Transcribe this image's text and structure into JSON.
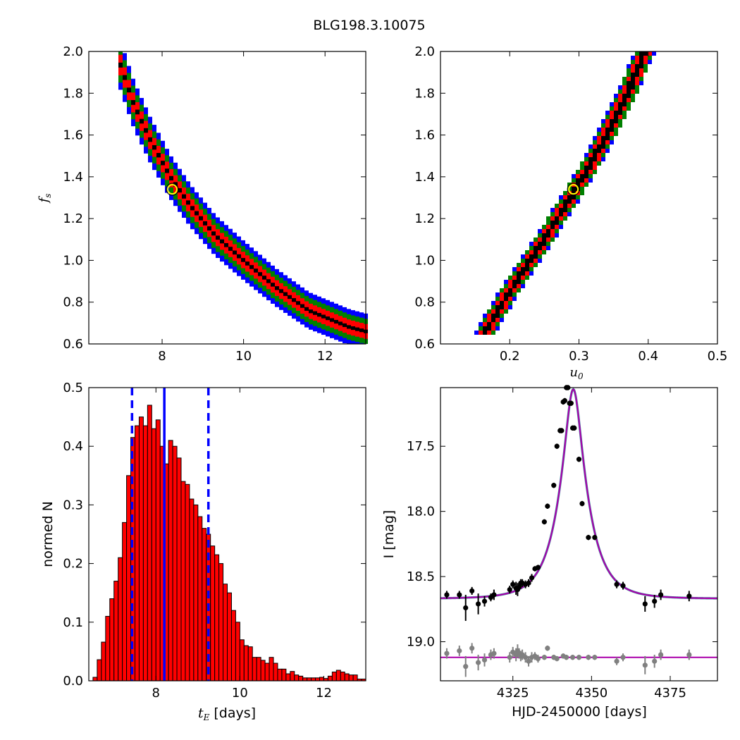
{
  "figure": {
    "title": "BLG198.3.10075"
  },
  "colors": {
    "blue": "#0000ff",
    "green": "#008000",
    "red": "#ff0000",
    "black": "#000000",
    "best_fit": "#ffff00",
    "model": "#aa00aa",
    "residual": "#808080"
  },
  "chart_data": [
    {
      "type": "heatmap",
      "panel": "tE-fs",
      "xlabel": "",
      "ylabel": "f_s",
      "xlim": [
        6.2,
        13.0
      ],
      "ylim": [
        0.6,
        2.0
      ],
      "xticks": [
        "8",
        "10",
        "12"
      ],
      "yticks": [
        "0.6",
        "0.8",
        "1.0",
        "1.2",
        "1.4",
        "1.6",
        "1.8",
        "2.0"
      ],
      "xtick_values": [
        8,
        10,
        12
      ],
      "ytick_values": [
        0.6,
        0.8,
        1.0,
        1.2,
        1.4,
        1.6,
        1.8,
        2.0
      ],
      "center_line": {
        "x": [
          6.9,
          7.3,
          7.7,
          8.2,
          8.7,
          9.3,
          10.0,
          10.8,
          11.6,
          12.6,
          13.0
        ],
        "y": [
          1.98,
          1.75,
          1.58,
          1.4,
          1.26,
          1.12,
          1.0,
          0.87,
          0.76,
          0.68,
          0.66
        ]
      },
      "levels": [
        {
          "color": "blue",
          "halfwidth": 0.12
        },
        {
          "color": "green",
          "halfwidth": 0.085
        },
        {
          "color": "red",
          "halfwidth": 0.05
        },
        {
          "color": "black",
          "halfwidth": 0.012
        }
      ],
      "best_fit": {
        "x": 8.25,
        "y": 1.34
      }
    },
    {
      "type": "heatmap",
      "panel": "u0-fs",
      "xlabel": "u_0",
      "ylabel": "",
      "xlim": [
        0.1,
        0.5
      ],
      "ylim": [
        0.6,
        2.0
      ],
      "xticks": [
        "0.2",
        "0.3",
        "0.4",
        "0.5"
      ],
      "yticks": [
        "0.6",
        "0.8",
        "1.0",
        "1.2",
        "1.4",
        "1.6",
        "1.8",
        "2.0"
      ],
      "xtick_values": [
        0.2,
        0.3,
        0.4,
        0.5
      ],
      "ytick_values": [
        0.6,
        0.8,
        1.0,
        1.2,
        1.4,
        1.6,
        1.8,
        2.0
      ],
      "center_line": {
        "x": [
          0.165,
          0.2,
          0.24,
          0.28,
          0.31,
          0.34,
          0.37,
          0.395
        ],
        "y": [
          0.66,
          0.85,
          1.05,
          1.26,
          1.42,
          1.6,
          1.8,
          2.0
        ]
      },
      "levels": [
        {
          "color": "blue",
          "halfwidth": 0.012
        },
        {
          "color": "green",
          "halfwidth": 0.01
        },
        {
          "color": "red",
          "halfwidth": 0.006
        },
        {
          "color": "black",
          "halfwidth": 0.0015
        }
      ],
      "best_fit": {
        "x": 0.292,
        "y": 1.34
      }
    },
    {
      "type": "bar",
      "panel": "tE-histogram",
      "xlabel": "[days]",
      "xlabel_symbol": "t_E",
      "ylabel": "normed N",
      "xlim": [
        6.4,
        13.0
      ],
      "ylim": [
        0.0,
        0.5
      ],
      "xticks": [
        "8",
        "10",
        "12"
      ],
      "yticks": [
        "0.0",
        "0.1",
        "0.2",
        "0.3",
        "0.4",
        "0.5"
      ],
      "xtick_values": [
        8,
        10,
        12
      ],
      "ytick_values": [
        0.0,
        0.1,
        0.2,
        0.3,
        0.4,
        0.5
      ],
      "bin_start": 6.5,
      "bin_width": 0.1,
      "values": [
        0.006,
        0.036,
        0.066,
        0.11,
        0.14,
        0.17,
        0.21,
        0.27,
        0.35,
        0.415,
        0.435,
        0.45,
        0.435,
        0.47,
        0.43,
        0.445,
        0.4,
        0.37,
        0.41,
        0.4,
        0.38,
        0.34,
        0.335,
        0.31,
        0.3,
        0.28,
        0.26,
        0.25,
        0.23,
        0.215,
        0.2,
        0.165,
        0.15,
        0.12,
        0.1,
        0.07,
        0.06,
        0.058,
        0.04,
        0.04,
        0.035,
        0.03,
        0.04,
        0.03,
        0.02,
        0.02,
        0.012,
        0.016,
        0.01,
        0.008,
        0.005,
        0.005,
        0.005,
        0.005,
        0.006,
        0.004,
        0.008,
        0.015,
        0.018,
        0.015,
        0.012,
        0.01,
        0.01,
        0.003,
        0.003
      ],
      "median": 8.2,
      "interval": [
        7.43,
        9.25
      ]
    },
    {
      "type": "scatter",
      "panel": "lightcurve",
      "xlabel": "HJD-2450000 [days]",
      "ylabel": "I [mag]",
      "xlim": [
        4302,
        4390
      ],
      "ylim": [
        19.3,
        17.05
      ],
      "y_inverted": true,
      "xticks": [
        "4325",
        "4350",
        "4375"
      ],
      "yticks": [
        "17.5",
        "18.0",
        "18.5",
        "19.0"
      ],
      "xtick_values": [
        4325,
        4350,
        4375
      ],
      "ytick_values": [
        17.5,
        18.0,
        18.5,
        19.0
      ],
      "model": {
        "t0": 4344.2,
        "tE": 8.25,
        "u0": 0.292,
        "fs": 1.34,
        "baseline": 18.67
      },
      "residual_offset": 19.12,
      "points": {
        "t": [
          4304,
          4308,
          4310,
          4312,
          4314,
          4316,
          4318,
          4319,
          4324,
          4325,
          4326,
          4326.5,
          4327,
          4327.5,
          4328,
          4329,
          4330,
          4331,
          4332,
          4333,
          4335,
          4336,
          4338,
          4339,
          4340,
          4340.5,
          4341,
          4341.5,
          4342,
          4342.5,
          4343,
          4343.5,
          4344,
          4344.5,
          4346,
          4347,
          4349,
          4351,
          4358,
          4360,
          4367,
          4370,
          4372,
          4381
        ],
        "mag": [
          18.64,
          18.64,
          18.74,
          18.61,
          18.71,
          18.69,
          18.66,
          18.64,
          18.6,
          18.56,
          18.59,
          18.6,
          18.58,
          18.55,
          18.55,
          18.56,
          18.55,
          18.51,
          18.44,
          18.43,
          18.08,
          17.96,
          17.8,
          17.5,
          17.38,
          17.38,
          17.16,
          17.15,
          17.05,
          17.05,
          17.17,
          17.17,
          17.36,
          17.36,
          17.6,
          17.94,
          18.2,
          18.2,
          18.56,
          18.57,
          18.71,
          18.69,
          18.64,
          18.65
        ],
        "err": [
          0.03,
          0.03,
          0.1,
          0.03,
          0.08,
          0.04,
          0.03,
          0.04,
          0.03,
          0.03,
          0.05,
          0.05,
          0.03,
          0.03,
          0.03,
          0.03,
          0.03,
          0.03,
          0.02,
          0.02,
          0.02,
          0.02,
          0.02,
          0.02,
          0.02,
          0.02,
          0.02,
          0.02,
          0.02,
          0.02,
          0.02,
          0.02,
          0.02,
          0.02,
          0.02,
          0.02,
          0.02,
          0.02,
          0.03,
          0.03,
          0.06,
          0.05,
          0.04,
          0.04
        ]
      },
      "residuals": {
        "t": [
          4304,
          4308,
          4310,
          4312,
          4314,
          4316,
          4318,
          4319,
          4324,
          4325,
          4326,
          4326.5,
          4327,
          4327.5,
          4328,
          4329,
          4330,
          4331,
          4332,
          4333,
          4335,
          4336,
          4338,
          4339,
          4341,
          4342,
          4344,
          4346,
          4349,
          4351,
          4358,
          4360,
          4367,
          4370,
          4372,
          4381
        ],
        "mag": [
          19.09,
          19.07,
          19.19,
          19.05,
          19.16,
          19.14,
          19.1,
          19.09,
          19.12,
          19.08,
          19.1,
          19.07,
          19.09,
          19.11,
          19.1,
          19.12,
          19.15,
          19.12,
          19.11,
          19.13,
          19.12,
          19.05,
          19.12,
          19.13,
          19.11,
          19.12,
          19.12,
          19.12,
          19.12,
          19.12,
          19.15,
          19.12,
          19.18,
          19.15,
          19.1,
          19.1
        ],
        "err": [
          0.04,
          0.04,
          0.08,
          0.04,
          0.06,
          0.05,
          0.04,
          0.04,
          0.04,
          0.04,
          0.05,
          0.05,
          0.04,
          0.04,
          0.04,
          0.04,
          0.04,
          0.04,
          0.03,
          0.03,
          0.02,
          0.02,
          0.02,
          0.02,
          0.02,
          0.02,
          0.02,
          0.02,
          0.02,
          0.02,
          0.03,
          0.03,
          0.07,
          0.05,
          0.04,
          0.04
        ]
      }
    }
  ]
}
